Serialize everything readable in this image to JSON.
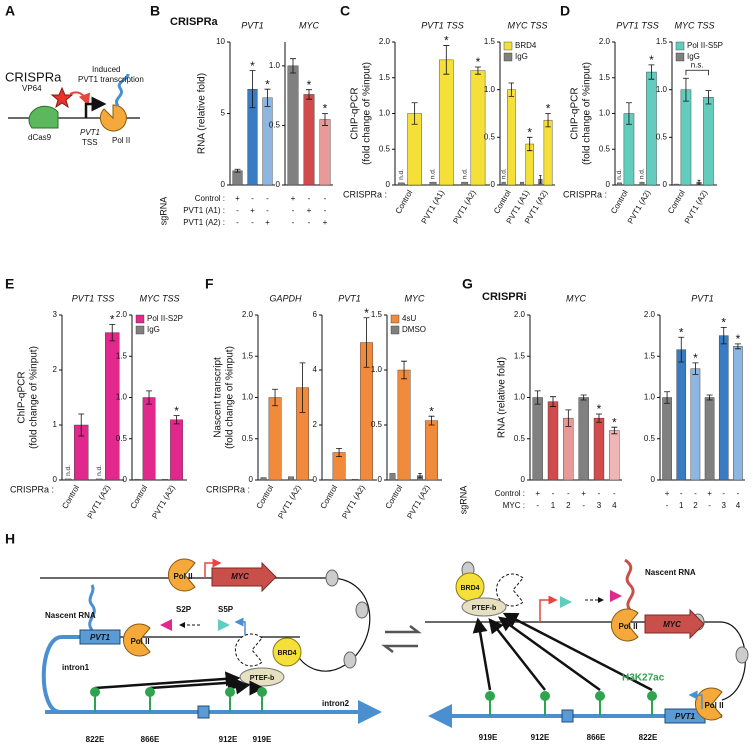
{
  "panel_letters": [
    "A",
    "B",
    "C",
    "D",
    "E",
    "F",
    "G",
    "H"
  ],
  "headings": [
    "CRISPRa",
    "CRISPRi"
  ],
  "diagram_a": {
    "title": "CRISPRa",
    "vp64": "VP64",
    "dcas9": "dCas9",
    "induced": "Induced",
    "transcription": "PVT1 transcription",
    "gene": "PVT1",
    "tss": "TSS",
    "pol2": "Pol II"
  },
  "diagram_h": {
    "left": {
      "myc": "MYC",
      "pol2_top": "Pol II",
      "nascent": "Nascent RNA",
      "pvt1": "PVT1",
      "pol2": "Pol II",
      "s2p": "S2P",
      "s5p": "S5P",
      "brd4": "BRD4",
      "ptefb": "PTEF-b",
      "intron1": "intron1",
      "intron2": "intron2",
      "enhancers": [
        "822E",
        "866E",
        "912E",
        "919E"
      ]
    },
    "right": {
      "nascent": "Nascent RNA",
      "myc": "MYC",
      "pol2": "Pol II",
      "brd4": "BRD4",
      "ptefb": "PTEF-b",
      "h3k27ac": "H3K27ac",
      "enhancers": [
        "919E",
        "912E",
        "866E",
        "822E"
      ],
      "pvt1": "PVT1",
      "pol2_bottom": "Pol II"
    }
  },
  "chart_data": [
    {
      "type": "bar",
      "title": "PVT1",
      "ylabel": [
        "RNA (relative fold)"
      ],
      "ylim": [
        0,
        10
      ],
      "yticks": [
        0,
        5,
        10
      ],
      "series": [
        {
          "colors": [
            "#808080",
            "#3a7cc3",
            "#8db6e0"
          ],
          "values": [
            1,
            6.7,
            6.1
          ],
          "errors": [
            0.1,
            1.3,
            0.6
          ],
          "significance": [
            null,
            "*",
            "*"
          ]
        }
      ],
      "table_title": "sgRNA",
      "table_rows": [
        {
          "label": "Control :",
          "cells": [
            "+",
            "-",
            "-"
          ]
        },
        {
          "label": "PVT1 (A1) :",
          "cells": [
            "-",
            "+",
            "-"
          ]
        },
        {
          "label": "PVT1 (A2) :",
          "cells": [
            "-",
            "-",
            "+"
          ]
        }
      ]
    },
    {
      "type": "bar",
      "title": "MYC",
      "ylim": [
        0,
        1.2
      ],
      "yticks": [
        0,
        0.5,
        {
          "value": 1,
          "label": "1.0"
        }
      ],
      "series": [
        {
          "colors": [
            "#808080",
            "#d14a4c",
            "#e89a98"
          ],
          "values": [
            1,
            0.76,
            0.55
          ],
          "errors": [
            0.06,
            0.04,
            0.05
          ],
          "significance": [
            null,
            "*",
            "*"
          ]
        }
      ],
      "table_rows": [
        {
          "cells": [
            "+",
            "-",
            "-"
          ]
        },
        {
          "cells": [
            "-",
            "+",
            "-"
          ]
        },
        {
          "cells": [
            "-",
            "-",
            "+"
          ]
        }
      ]
    },
    {
      "type": "bar",
      "title": "PVT1 TSS",
      "ylabel": [
        "ChIP-qPCR",
        "(fold change of %input)"
      ],
      "xlabel": "CRISPRa :",
      "categories": [
        "Control",
        "PVT1 (A1)",
        "PVT1 (A2)"
      ],
      "ylim": [
        0,
        2
      ],
      "yticks": [
        0,
        0.5,
        {
          "value": 1,
          "label": "1.0"
        },
        1.5,
        {
          "value": 2,
          "label": "2.0"
        }
      ],
      "series": [
        {
          "color": "#f5e03a",
          "values": [
            1,
            1.75,
            1.6
          ],
          "errors": [
            0.15,
            0.2,
            0.05
          ],
          "significance": [
            null,
            "*",
            "*"
          ]
        },
        {
          "color": "#808080",
          "values": [
            0.03,
            0.04,
            0.04
          ],
          "annotations": [
            "n.d.",
            "n.d.",
            "n.d."
          ]
        }
      ]
    },
    {
      "type": "bar",
      "title": "MYC TSS",
      "categories": [
        "Control",
        "PVT1 (A1)",
        "PVT1 (A2)"
      ],
      "ylim": [
        0,
        1.5
      ],
      "yticks": [
        0,
        0.5,
        {
          "value": 1,
          "label": "1.0"
        },
        1.5
      ],
      "legend": true,
      "series": [
        {
          "name": "BRD4",
          "color": "#f5e03a",
          "values": [
            1,
            0.43,
            0.68
          ],
          "errors": [
            0.07,
            0.07,
            0.07
          ],
          "significance": [
            null,
            "*",
            "*"
          ]
        },
        {
          "name": "IgG",
          "color": "#808080",
          "values": [
            0.03,
            0.03,
            0.06
          ],
          "errors": [
            null,
            null,
            0.04
          ],
          "annotations": [
            "n.d.",
            null,
            null
          ]
        }
      ]
    },
    {
      "type": "bar",
      "title": "PVT1 TSS",
      "ylabel": [
        "ChIP-qPCR",
        "(fold change of %input)"
      ],
      "xlabel": "CRISPRa :",
      "categories": [
        "Control",
        "PVT1 (A2)"
      ],
      "ylim": [
        0,
        2
      ],
      "yticks": [
        0,
        0.5,
        {
          "value": 1,
          "label": "1.0"
        },
        1.5,
        {
          "value": 2,
          "label": "2.0"
        }
      ],
      "series": [
        {
          "color": "#62cdbd",
          "values": [
            1,
            1.58
          ],
          "errors": [
            0.15,
            0.1
          ],
          "significance": [
            null,
            "*"
          ]
        },
        {
          "color": "#808080",
          "values": [
            0.03,
            0.04
          ],
          "annotations": [
            "n.d.",
            "n.d."
          ]
        }
      ]
    },
    {
      "type": "bar",
      "title": "MYC TSS",
      "categories": [
        "Control",
        "PVT1 (A2)"
      ],
      "ylim": [
        0,
        1.5
      ],
      "yticks": [
        0,
        0.5,
        {
          "value": 1,
          "label": "1.0"
        },
        1.5
      ],
      "legend": true,
      "bracket": "n.s.",
      "series": [
        {
          "name": "Pol II-S5P",
          "color": "#62cdbd",
          "values": [
            1,
            0.92
          ],
          "errors": [
            0.12,
            0.07
          ]
        },
        {
          "name": "IgG",
          "color": "#808080",
          "values": [
            0.01,
            0.03
          ],
          "errors": [
            null,
            0.02
          ]
        }
      ]
    },
    {
      "type": "bar",
      "title": "PVT1 TSS",
      "ylabel": [
        "ChIP-qPCR",
        "(fold change of %input)"
      ],
      "xlabel": "CRISPRa :",
      "categories": [
        "Control",
        "PVT1 (A2)"
      ],
      "ylim": [
        0,
        3
      ],
      "yticks": [
        0,
        1,
        2,
        3
      ],
      "series": [
        {
          "color": "#e2288c",
          "values": [
            1,
            2.68
          ],
          "errors": [
            0.2,
            0.15
          ],
          "significance": [
            null,
            "*"
          ]
        },
        {
          "color": "#808080",
          "values": [
            0.02,
            0.02
          ],
          "annotations": [
            "n.d.",
            "n.d."
          ]
        }
      ]
    },
    {
      "type": "bar",
      "title": "MYC TSS",
      "categories": [
        "Control",
        "PVT1 (A2)"
      ],
      "ylim": [
        0,
        2
      ],
      "yticks": [
        0,
        0.5,
        {
          "value": 1,
          "label": "1.0"
        },
        1.5,
        {
          "value": 2,
          "label": "2.0"
        }
      ],
      "legend": true,
      "series": [
        {
          "name": "Pol II-S2P",
          "color": "#e2288c",
          "values": [
            1,
            0.73
          ],
          "errors": [
            0.08,
            0.05
          ],
          "significance": [
            null,
            "*"
          ]
        },
        {
          "name": "IgG",
          "color": "#808080",
          "values": [
            0.01,
            0.01
          ]
        }
      ]
    },
    {
      "type": "bar",
      "title": "GAPDH",
      "ylabel": [
        "Nascent transcript",
        "(fold change of %input)"
      ],
      "xlabel": "CRISPRa :",
      "categories": [
        "Control",
        "PVT1 (A2)"
      ],
      "ylim": [
        0,
        2
      ],
      "yticks": [
        0,
        0.5,
        {
          "value": 1,
          "label": "1.0"
        },
        1.5,
        {
          "value": 2,
          "label": "2.0"
        }
      ],
      "series": [
        {
          "color": "#f28a3b",
          "values": [
            1,
            1.12
          ],
          "errors": [
            0.1,
            0.3
          ]
        },
        {
          "color": "#808080",
          "values": [
            0.03,
            0.04
          ]
        }
      ]
    },
    {
      "type": "bar",
      "title": "PVT1",
      "categories": [
        "Control",
        "PVT1 (A2)"
      ],
      "ylim": [
        0,
        6
      ],
      "yticks": [
        0,
        2,
        4,
        6
      ],
      "series": [
        {
          "color": "#f28a3b",
          "values": [
            1,
            5.0
          ],
          "errors": [
            0.15,
            0.9
          ],
          "significance": [
            null,
            "*"
          ]
        },
        {
          "color": "#808080",
          "values": [
            0.02,
            0.03
          ]
        }
      ]
    },
    {
      "type": "bar",
      "title": "MYC",
      "categories": [
        "Control",
        "PVT1 (A2)"
      ],
      "ylim": [
        0,
        1.5
      ],
      "yticks": [
        0,
        0.5,
        {
          "value": 1,
          "label": "1.0"
        },
        1.5
      ],
      "legend": true,
      "series": [
        {
          "name": "4sU",
          "color": "#f28a3b",
          "values": [
            1,
            0.54
          ],
          "errors": [
            0.08,
            0.04
          ],
          "significance": [
            null,
            "*"
          ]
        },
        {
          "name": "DMSO",
          "color": "#808080",
          "values": [
            0.06,
            0.04
          ],
          "errors": [
            null,
            0.02
          ]
        }
      ]
    },
    {
      "type": "bar",
      "title": "MYC",
      "ylabel": [
        "RNA (relative fold)"
      ],
      "ylim": [
        0,
        2
      ],
      "yticks": [
        0,
        0.5,
        {
          "value": 1,
          "label": "1.0"
        },
        1.5,
        {
          "value": 2,
          "label": "2.0"
        }
      ],
      "series": [
        {
          "colors": [
            "#808080",
            "#d14a4c",
            "#e89a98",
            "#808080",
            "#d14a4c",
            "#f0b5b5"
          ],
          "values": [
            1,
            0.95,
            0.75,
            1,
            0.75,
            0.6
          ],
          "errors": [
            0.08,
            0.06,
            0.1,
            0.03,
            0.05,
            0.04
          ],
          "significance": [
            null,
            null,
            null,
            null,
            "*",
            "*"
          ]
        }
      ],
      "table_title": "sgRNA",
      "table_rows": [
        {
          "label": "Control :",
          "cells": [
            "+",
            "-",
            "-",
            "+",
            "-",
            "-"
          ]
        },
        {
          "label": "MYC :",
          "cells": [
            "-",
            "1",
            "2",
            "-",
            "3",
            "4"
          ]
        }
      ]
    },
    {
      "type": "bar",
      "title": "PVT1",
      "ylim": [
        0,
        2
      ],
      "yticks": [
        0,
        0.5,
        {
          "value": 1,
          "label": "1.0"
        },
        1.5,
        {
          "value": 2,
          "label": "2.0"
        }
      ],
      "series": [
        {
          "colors": [
            "#808080",
            "#3a7cc3",
            "#8db6e0",
            "#808080",
            "#3a7cc3",
            "#8db6e0"
          ],
          "values": [
            1,
            1.58,
            1.35,
            1,
            1.75,
            1.62
          ],
          "errors": [
            0.07,
            0.15,
            0.07,
            0.03,
            0.1,
            0.03
          ],
          "significance": [
            null,
            "*",
            "*",
            null,
            "*",
            "*"
          ]
        }
      ],
      "table_rows": [
        {
          "cells": [
            "+",
            "-",
            "-",
            "+",
            "-",
            "-"
          ]
        },
        {
          "cells": [
            "-",
            "1",
            "2",
            "-",
            "3",
            "4"
          ]
        }
      ]
    }
  ]
}
